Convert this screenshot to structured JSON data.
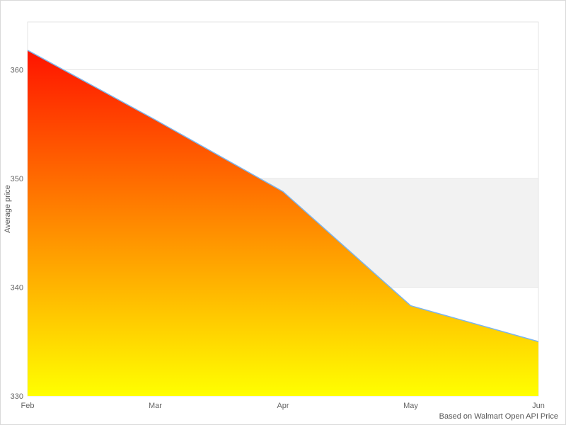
{
  "chart_data": {
    "type": "area",
    "title": "",
    "categories": [
      "Feb",
      "Mar",
      "Apr",
      "May",
      "Jun"
    ],
    "values": [
      361.8,
      355.4,
      348.8,
      338.3,
      335.0
    ],
    "xlabel": "",
    "ylabel": "Average price",
    "ylim": [
      330,
      364.4
    ],
    "yticks": [
      330,
      340,
      350,
      360
    ],
    "grid": true,
    "legend": "none",
    "band": {
      "from": 340,
      "to": 350,
      "color": "#f2f2f2"
    },
    "line_color": "#7cb5ec",
    "gradient": {
      "top": "#ff0000",
      "bottom": "#ffff00"
    },
    "grid_color": "#e6e6e6",
    "tick_label_color": "#666666",
    "axis_title_color": "#555555",
    "credits": "Based on Walmart Open API Price"
  }
}
